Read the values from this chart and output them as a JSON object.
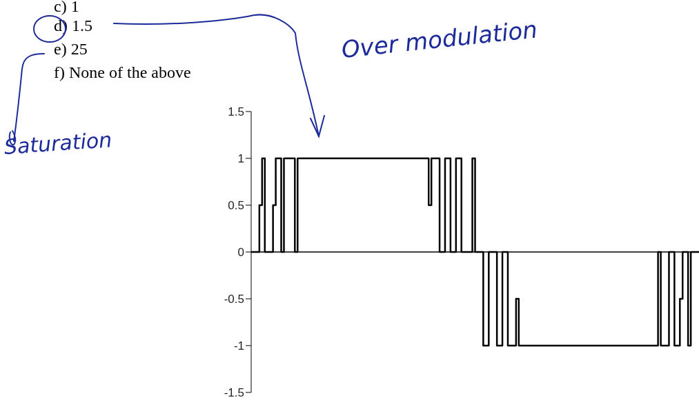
{
  "chart_data": {
    "type": "step",
    "annotations": [
      "c) 1",
      "d) 1.5",
      "e) 25",
      "f) None of the above",
      "Over modulation",
      "Saturation"
    ],
    "categories": [
      null,
      null,
      null,
      null,
      null,
      null,
      null,
      null,
      null,
      null,
      null,
      null,
      null,
      null,
      null,
      null,
      null,
      null,
      null,
      null,
      null,
      null,
      null,
      null,
      null,
      null,
      null,
      null,
      null,
      null,
      null,
      null,
      null,
      null,
      null,
      null,
      null,
      null,
      null,
      null,
      null,
      null,
      null,
      null,
      null,
      null,
      null,
      null,
      null,
      null,
      null,
      null,
      null,
      null,
      null,
      null,
      null,
      null,
      null,
      null,
      null,
      null,
      null,
      null,
      null,
      null,
      null,
      null,
      null,
      null,
      null,
      null,
      null,
      null,
      null,
      null,
      null,
      null,
      null,
      null,
      null,
      null,
      null,
      null,
      null,
      null,
      null,
      null,
      null,
      null,
      null,
      null,
      null,
      null,
      null,
      null,
      null,
      null,
      null,
      null,
      null,
      null,
      null,
      null,
      null,
      null,
      null,
      null,
      null,
      null,
      null,
      null,
      null,
      null,
      null,
      null,
      null,
      null,
      null,
      null,
      null,
      null,
      null,
      null,
      null,
      null,
      null,
      null,
      null,
      null,
      null,
      null,
      null,
      null,
      null,
      null,
      null,
      null,
      null,
      null,
      null,
      null,
      null,
      null,
      null,
      null,
      null,
      null,
      null,
      null,
      null,
      null,
      null,
      null,
      null,
      null,
      null,
      null,
      null,
      null,
      null,
      null,
      null,
      null,
      null
    ],
    "values": [
      0,
      0,
      0,
      0.5,
      1,
      0,
      0,
      0,
      0.5,
      1,
      1,
      0,
      1,
      1,
      1,
      1,
      0,
      1,
      1,
      1,
      1,
      1,
      1,
      1,
      1,
      1,
      1,
      1,
      1,
      1,
      1,
      1,
      1,
      1,
      1,
      1,
      1,
      1,
      1,
      1,
      1,
      1,
      1,
      1,
      1,
      1,
      1,
      1,
      1,
      1,
      1,
      1,
      1,
      1,
      1,
      1,
      1,
      1,
      1,
      1,
      1,
      1,
      1,
      1,
      1,
      0.5,
      1,
      1,
      1,
      0,
      0,
      1,
      1,
      0,
      0,
      1,
      1,
      0,
      0,
      0,
      0,
      1,
      0,
      0,
      0,
      -1,
      -1,
      0,
      0,
      0,
      -1,
      -1,
      0,
      0,
      -1,
      -1,
      -1,
      -0.5,
      -1,
      -1,
      -1,
      -1,
      -1,
      -1,
      -1,
      -1,
      -1,
      -1,
      -1,
      -1,
      -1,
      -1,
      -1,
      -1,
      -1,
      -1,
      -1,
      -1,
      -1,
      -1,
      -1,
      -1,
      -1,
      -1,
      -1,
      -1,
      -1,
      -1,
      -1,
      -1,
      -1,
      -1,
      -1,
      -1,
      -1,
      -1,
      -1,
      -1,
      -1,
      -1,
      -1,
      -1,
      -1,
      -1,
      -1,
      -1,
      -1,
      -1,
      -1,
      0,
      -1,
      -1,
      -1,
      0,
      0,
      -1,
      -1,
      -0.5,
      0,
      0,
      -1,
      0,
      0,
      0,
      0
    ],
    "color": "#000000",
    "ylim": [
      -1.5,
      1.5
    ],
    "yticks": [
      1.5,
      1,
      0.5,
      0,
      -0.5,
      -1,
      -1.5
    ],
    "tick_labels": "y",
    "ref_lines": [
      {
        "axis": "y",
        "value": 0,
        "color": "#000000"
      }
    ]
  }
}
